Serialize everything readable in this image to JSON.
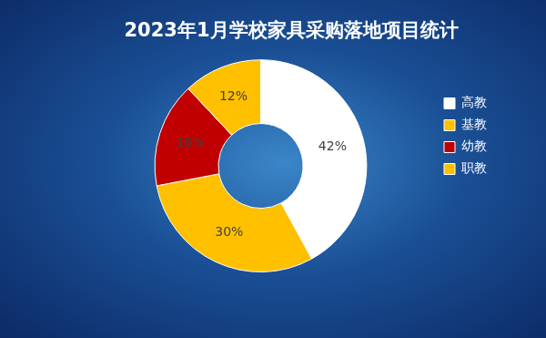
{
  "chart_data": {
    "type": "doughnut",
    "title": "2023年1月学校家具采购落地项目统计",
    "categories": [
      "高教",
      "基教",
      "幼教",
      "职教"
    ],
    "values": [
      42,
      30,
      16,
      12
    ],
    "value_labels": [
      "42%",
      "30%",
      "16%",
      "12%"
    ],
    "colors": [
      "#ffffff",
      "#ffc000",
      "#c00000",
      "#ffc000"
    ],
    "legend": "right",
    "data_labels": true
  }
}
